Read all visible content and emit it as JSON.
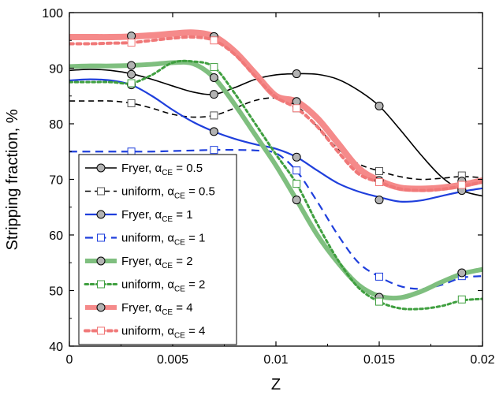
{
  "chart_data": {
    "type": "line",
    "xlabel": "Z",
    "ylabel": "Stripping fraction, %",
    "xlim": [
      0,
      0.02
    ],
    "ylim": [
      40,
      100
    ],
    "xticks": [
      0,
      0.005,
      0.01,
      0.015,
      0.02
    ],
    "xtick_labels": [
      "0",
      "0.005",
      "0.01",
      "0.015",
      "0.02"
    ],
    "yticks": [
      40,
      50,
      60,
      70,
      80,
      90,
      100
    ],
    "ytick_labels": [
      "40",
      "50",
      "60",
      "70",
      "80",
      "90",
      "100"
    ],
    "grid": false,
    "legend_position": "bottom-left",
    "series": [
      {
        "name": "Fryer, α",
        "name_sub": "CE",
        "name_tail": " = 0.5",
        "color": "#000000",
        "style": "solid",
        "width": 1.6,
        "marker": "circle",
        "marker_fill": "#b3b3b3",
        "marker_stroke": "#000000",
        "curve": [
          [
            0,
            89.6
          ],
          [
            0.001,
            89.8
          ],
          [
            0.002,
            89.6
          ],
          [
            0.003,
            89.0
          ],
          [
            0.004,
            88.0
          ],
          [
            0.005,
            86.8
          ],
          [
            0.006,
            85.7
          ],
          [
            0.007,
            85.3
          ],
          [
            0.008,
            86.5
          ],
          [
            0.009,
            88.0
          ],
          [
            0.01,
            88.8
          ],
          [
            0.011,
            89.0
          ],
          [
            0.012,
            88.9
          ],
          [
            0.013,
            88.0
          ],
          [
            0.014,
            86.0
          ],
          [
            0.015,
            83.2
          ],
          [
            0.016,
            79.0
          ],
          [
            0.017,
            74.5
          ],
          [
            0.018,
            70.5
          ],
          [
            0.019,
            68.0
          ],
          [
            0.02,
            67.0
          ]
        ],
        "markers": [
          [
            0.003,
            88.9
          ],
          [
            0.007,
            85.3
          ],
          [
            0.011,
            89.0
          ],
          [
            0.015,
            83.2
          ],
          [
            0.019,
            68.2
          ]
        ]
      },
      {
        "name": "uniform, α",
        "name_sub": "CE",
        "name_tail": " = 0.5",
        "color": "#000000",
        "style": "dashed",
        "width": 1.6,
        "marker": "square",
        "marker_fill": "#ffffff",
        "marker_stroke": "#555555",
        "curve": [
          [
            0,
            84.1
          ],
          [
            0.001,
            84.1
          ],
          [
            0.002,
            84.1
          ],
          [
            0.003,
            83.7
          ],
          [
            0.004,
            82.8
          ],
          [
            0.005,
            81.7
          ],
          [
            0.006,
            81.2
          ],
          [
            0.007,
            81.5
          ],
          [
            0.008,
            82.8
          ],
          [
            0.009,
            84.2
          ],
          [
            0.01,
            84.6
          ],
          [
            0.011,
            83.2
          ],
          [
            0.012,
            79.5
          ],
          [
            0.013,
            75.5
          ],
          [
            0.014,
            72.8
          ],
          [
            0.015,
            71.5
          ],
          [
            0.016,
            70.5
          ],
          [
            0.017,
            70.0
          ],
          [
            0.018,
            70.2
          ],
          [
            0.019,
            70.5
          ],
          [
            0.02,
            70.3
          ]
        ],
        "markers": [
          [
            0.003,
            83.7
          ],
          [
            0.007,
            81.5
          ],
          [
            0.011,
            82.8
          ],
          [
            0.015,
            71.5
          ],
          [
            0.019,
            70.7
          ]
        ]
      },
      {
        "name": "Fryer, α",
        "name_sub": "CE",
        "name_tail": " = 1",
        "color": "#1f3fdc",
        "style": "solid",
        "width": 2.2,
        "marker": "circle",
        "marker_fill": "#b3b3b3",
        "marker_stroke": "#000000",
        "curve": [
          [
            0,
            87.8
          ],
          [
            0.001,
            88.0
          ],
          [
            0.002,
            87.8
          ],
          [
            0.003,
            87.0
          ],
          [
            0.004,
            85.0
          ],
          [
            0.005,
            82.5
          ],
          [
            0.006,
            80.3
          ],
          [
            0.007,
            78.6
          ],
          [
            0.008,
            77.3
          ],
          [
            0.009,
            76.3
          ],
          [
            0.01,
            75.5
          ],
          [
            0.011,
            74.0
          ],
          [
            0.012,
            71.6
          ],
          [
            0.013,
            69.3
          ],
          [
            0.014,
            67.8
          ],
          [
            0.015,
            66.8
          ],
          [
            0.016,
            66.0
          ],
          [
            0.017,
            66.2
          ],
          [
            0.018,
            67.0
          ],
          [
            0.019,
            67.8
          ],
          [
            0.02,
            68.4
          ]
        ],
        "markers": [
          [
            0.003,
            87.0
          ],
          [
            0.007,
            78.6
          ],
          [
            0.011,
            74.0
          ],
          [
            0.015,
            66.3
          ],
          [
            0.019,
            68.0
          ]
        ]
      },
      {
        "name": "uniform, α",
        "name_sub": "CE",
        "name_tail": " = 1",
        "color": "#1f3fdc",
        "style": "dashed",
        "width": 2.2,
        "marker": "square",
        "marker_fill": "#ffffff",
        "marker_stroke": "#1f3fdc",
        "curve": [
          [
            0,
            75.0
          ],
          [
            0.001,
            75.0
          ],
          [
            0.002,
            75.0
          ],
          [
            0.003,
            75.0
          ],
          [
            0.004,
            75.0
          ],
          [
            0.005,
            75.1
          ],
          [
            0.006,
            75.2
          ],
          [
            0.007,
            75.3
          ],
          [
            0.008,
            75.3
          ],
          [
            0.009,
            75.2
          ],
          [
            0.01,
            74.7
          ],
          [
            0.011,
            71.5
          ],
          [
            0.012,
            66.0
          ],
          [
            0.013,
            60.0
          ],
          [
            0.014,
            55.0
          ],
          [
            0.015,
            52.5
          ],
          [
            0.016,
            50.8
          ],
          [
            0.017,
            50.3
          ],
          [
            0.018,
            51.0
          ],
          [
            0.019,
            52.3
          ],
          [
            0.02,
            52.6
          ]
        ],
        "markers": [
          [
            0.003,
            75.0
          ],
          [
            0.007,
            75.3
          ],
          [
            0.011,
            71.6
          ],
          [
            0.015,
            52.5
          ],
          [
            0.019,
            52.6
          ]
        ]
      },
      {
        "name": "Fryer, α",
        "name_sub": "CE",
        "name_tail": " = 2",
        "color": "#7fbf7f",
        "style": "solid",
        "width": 6,
        "marker": "circle",
        "marker_fill": "#b3b3b3",
        "marker_stroke": "#000000",
        "curve": [
          [
            0,
            90.3
          ],
          [
            0.001,
            90.4
          ],
          [
            0.002,
            90.4
          ],
          [
            0.003,
            90.5
          ],
          [
            0.004,
            90.7
          ],
          [
            0.005,
            91.0
          ],
          [
            0.006,
            90.8
          ],
          [
            0.007,
            88.3
          ],
          [
            0.008,
            83.5
          ],
          [
            0.009,
            78.0
          ],
          [
            0.01,
            72.5
          ],
          [
            0.011,
            66.3
          ],
          [
            0.012,
            60.0
          ],
          [
            0.013,
            55.0
          ],
          [
            0.014,
            51.0
          ],
          [
            0.015,
            49.0
          ],
          [
            0.016,
            48.7
          ],
          [
            0.017,
            49.8
          ],
          [
            0.018,
            51.5
          ],
          [
            0.019,
            53.0
          ],
          [
            0.02,
            53.8
          ]
        ],
        "markers": [
          [
            0.003,
            90.5
          ],
          [
            0.007,
            88.3
          ],
          [
            0.011,
            66.3
          ],
          [
            0.015,
            48.8
          ],
          [
            0.019,
            53.2
          ]
        ]
      },
      {
        "name": "uniform, α",
        "name_sub": "CE",
        "name_tail": " = 2",
        "color": "#3f9f3f",
        "style": "dotted",
        "width": 3,
        "marker": "square",
        "marker_fill": "#ffffff",
        "marker_stroke": "#3f9f3f",
        "curve": [
          [
            0,
            87.5
          ],
          [
            0.001,
            87.5
          ],
          [
            0.002,
            87.5
          ],
          [
            0.003,
            87.3
          ],
          [
            0.004,
            88.8
          ],
          [
            0.005,
            91.0
          ],
          [
            0.006,
            91.2
          ],
          [
            0.007,
            90.2
          ],
          [
            0.008,
            85.5
          ],
          [
            0.009,
            80.0
          ],
          [
            0.01,
            74.5
          ],
          [
            0.011,
            69.2
          ],
          [
            0.012,
            62.0
          ],
          [
            0.013,
            55.5
          ],
          [
            0.014,
            50.5
          ],
          [
            0.015,
            48.0
          ],
          [
            0.016,
            46.8
          ],
          [
            0.017,
            46.7
          ],
          [
            0.018,
            47.2
          ],
          [
            0.019,
            48.2
          ],
          [
            0.02,
            48.5
          ]
        ],
        "markers": [
          [
            0.003,
            87.3
          ],
          [
            0.007,
            90.2
          ],
          [
            0.011,
            69.2
          ],
          [
            0.015,
            48.0
          ],
          [
            0.019,
            48.4
          ]
        ]
      },
      {
        "name": "Fryer, α",
        "name_sub": "CE",
        "name_tail": " = 4",
        "color": "#f58a8a",
        "style": "solid",
        "width": 8,
        "marker": "circle",
        "marker_fill": "#b3b3b3",
        "marker_stroke": "#000000",
        "curve": [
          [
            0,
            95.6
          ],
          [
            0.001,
            95.6
          ],
          [
            0.002,
            95.6
          ],
          [
            0.003,
            95.7
          ],
          [
            0.004,
            95.9
          ],
          [
            0.005,
            96.2
          ],
          [
            0.006,
            96.4
          ],
          [
            0.007,
            95.7
          ],
          [
            0.008,
            93.0
          ],
          [
            0.009,
            89.0
          ],
          [
            0.01,
            85.0
          ],
          [
            0.011,
            84.0
          ],
          [
            0.012,
            81.0
          ],
          [
            0.013,
            76.5
          ],
          [
            0.014,
            72.0
          ],
          [
            0.015,
            69.8
          ],
          [
            0.016,
            68.5
          ],
          [
            0.017,
            68.3
          ],
          [
            0.018,
            68.5
          ],
          [
            0.019,
            69.0
          ],
          [
            0.02,
            69.8
          ]
        ],
        "markers": [
          [
            0.003,
            95.8
          ],
          [
            0.007,
            95.7
          ],
          [
            0.011,
            84.0
          ],
          [
            0.015,
            69.8
          ],
          [
            0.019,
            69.7
          ]
        ]
      },
      {
        "name": "uniform, α",
        "name_sub": "CE",
        "name_tail": " = 4",
        "color": "#f07878",
        "style": "dotted",
        "width": 4,
        "marker": "square",
        "marker_fill": "#ffffff",
        "marker_stroke": "#f07878",
        "curve": [
          [
            0,
            94.4
          ],
          [
            0.001,
            94.4
          ],
          [
            0.002,
            94.5
          ],
          [
            0.003,
            94.6
          ],
          [
            0.004,
            95.0
          ],
          [
            0.005,
            95.4
          ],
          [
            0.006,
            95.6
          ],
          [
            0.007,
            95.0
          ],
          [
            0.008,
            92.5
          ],
          [
            0.009,
            88.5
          ],
          [
            0.01,
            84.8
          ],
          [
            0.011,
            82.8
          ],
          [
            0.012,
            79.5
          ],
          [
            0.013,
            75.0
          ],
          [
            0.014,
            71.0
          ],
          [
            0.015,
            69.5
          ],
          [
            0.016,
            68.3
          ],
          [
            0.017,
            68.0
          ],
          [
            0.018,
            68.2
          ],
          [
            0.019,
            68.8
          ],
          [
            0.02,
            69.5
          ]
        ],
        "markers": [
          [
            0.003,
            94.6
          ],
          [
            0.007,
            95.0
          ],
          [
            0.011,
            82.8
          ],
          [
            0.015,
            69.5
          ],
          [
            0.019,
            69.0
          ]
        ]
      }
    ]
  }
}
